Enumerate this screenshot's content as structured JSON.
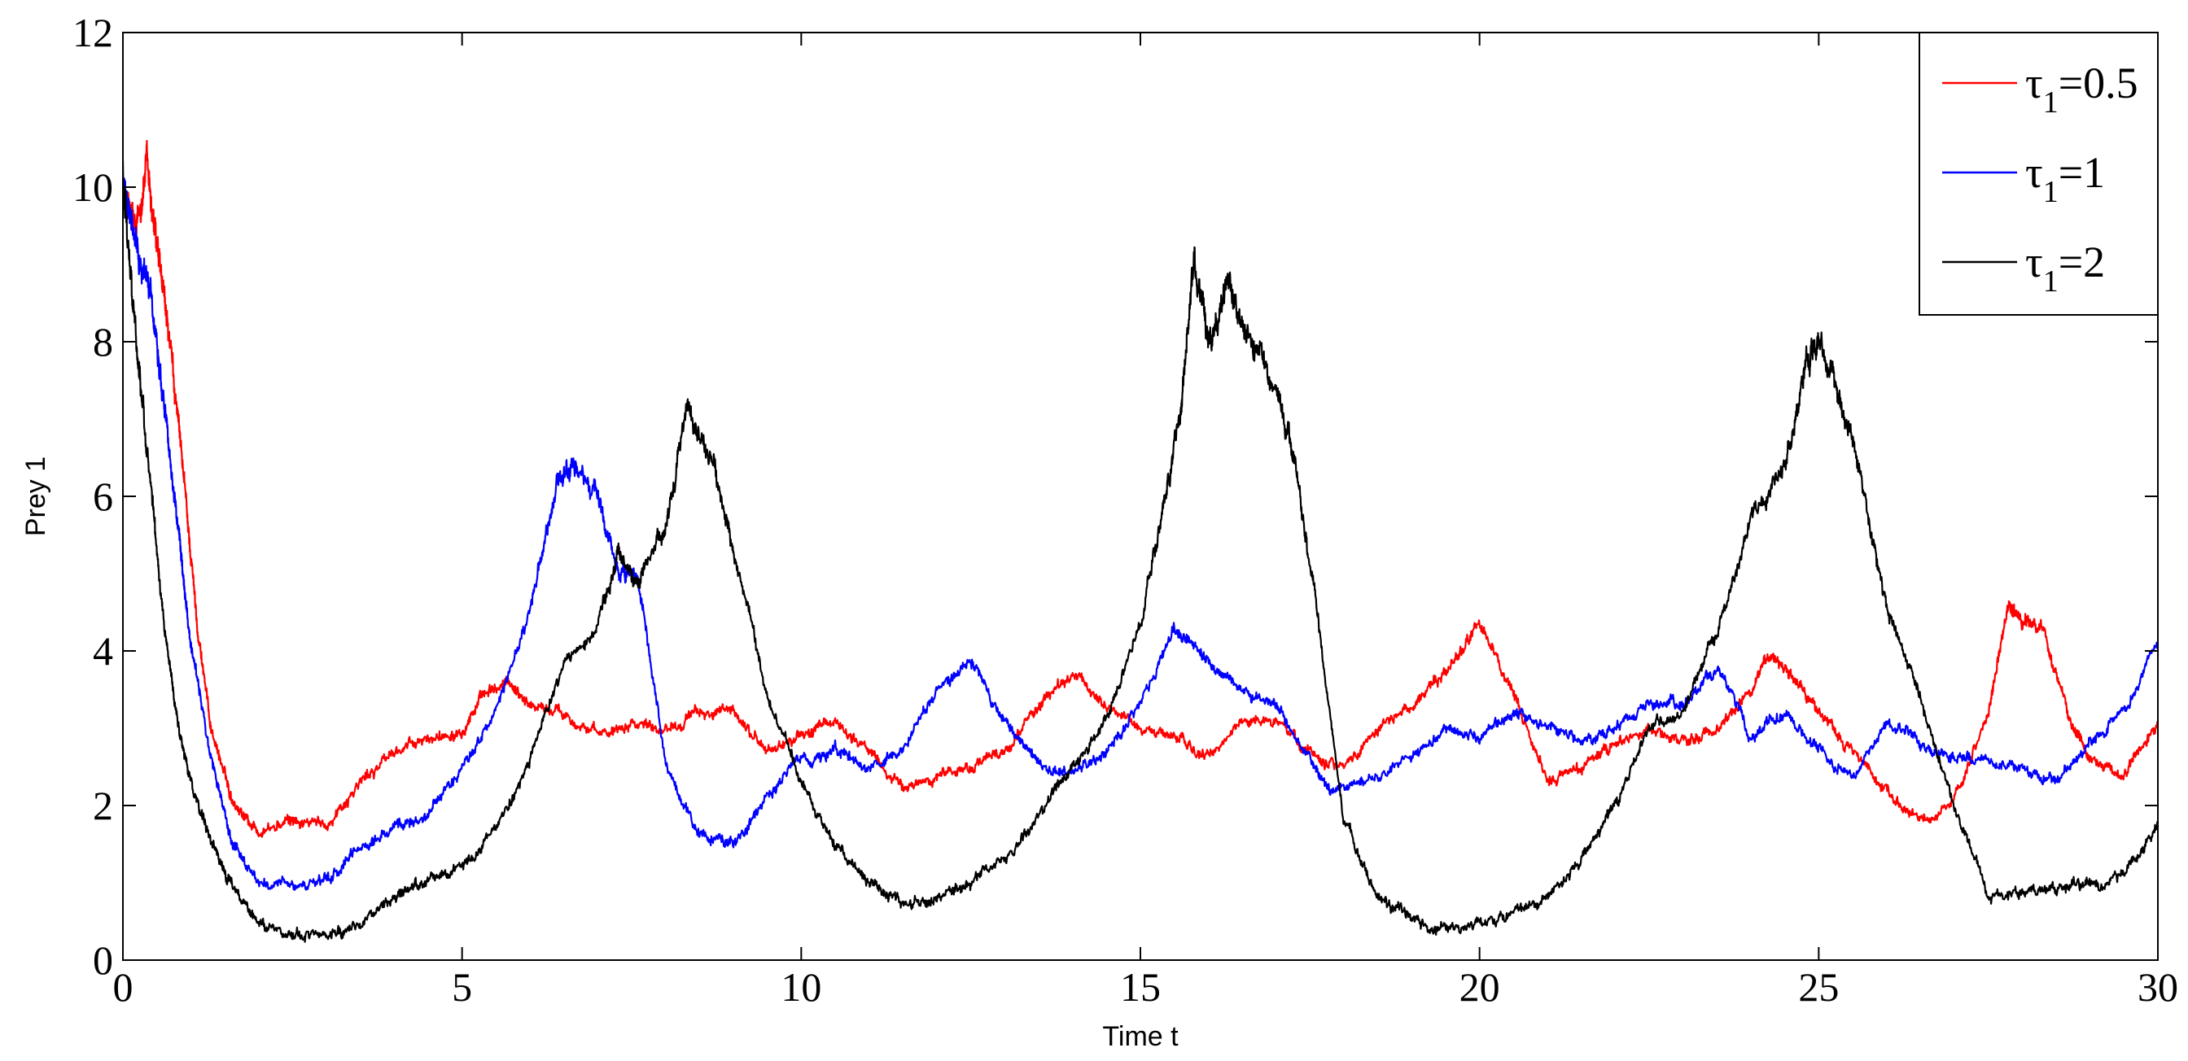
{
  "chart_data": {
    "type": "line",
    "title": "",
    "xlabel": "Time t",
    "ylabel": "Prey 1",
    "xlim": [
      0,
      30
    ],
    "ylim": [
      0,
      12
    ],
    "xticks": [
      0,
      5,
      10,
      15,
      20,
      25,
      30
    ],
    "xtick_labels": [
      "0",
      "5",
      "10",
      "15",
      "20",
      "25",
      "30"
    ],
    "yticks": [
      0,
      2,
      4,
      6,
      8,
      10,
      12
    ],
    "ytick_labels": [
      "0",
      "2",
      "4",
      "6",
      "8",
      "10",
      "12"
    ],
    "grid": false,
    "legend_position": "top-right",
    "series": [
      {
        "name_symbol": "τ",
        "name_sub": "1",
        "name_rest": "=0.5",
        "color": "#ff0000",
        "points": [
          [
            0,
            10.0
          ],
          [
            0.2,
            9.4
          ],
          [
            0.35,
            10.3
          ],
          [
            0.5,
            9.2
          ],
          [
            0.7,
            7.9
          ],
          [
            0.9,
            6.2
          ],
          [
            1.1,
            4.3
          ],
          [
            1.3,
            3.0
          ],
          [
            1.6,
            2.1
          ],
          [
            2.0,
            1.65
          ],
          [
            2.5,
            1.8
          ],
          [
            3.0,
            1.75
          ],
          [
            3.5,
            2.3
          ],
          [
            4.0,
            2.7
          ],
          [
            4.5,
            2.85
          ],
          [
            5.0,
            3.0
          ],
          [
            5.3,
            3.4
          ],
          [
            5.7,
            3.6
          ],
          [
            6.0,
            3.3
          ],
          [
            6.5,
            3.2
          ],
          [
            7.0,
            2.9
          ],
          [
            7.5,
            3.1
          ],
          [
            8.0,
            3.0
          ],
          [
            8.5,
            3.2
          ],
          [
            9.0,
            3.2
          ],
          [
            9.5,
            2.7
          ],
          [
            10.0,
            2.9
          ],
          [
            10.5,
            3.1
          ],
          [
            11.0,
            2.7
          ],
          [
            11.5,
            2.2
          ],
          [
            12.0,
            2.4
          ],
          [
            12.5,
            2.5
          ],
          [
            13.0,
            2.7
          ],
          [
            13.5,
            3.3
          ],
          [
            14.0,
            3.7
          ],
          [
            14.5,
            3.3
          ],
          [
            15.0,
            3.0
          ],
          [
            15.5,
            2.9
          ],
          [
            16.0,
            2.6
          ],
          [
            16.5,
            3.1
          ],
          [
            17.0,
            3.1
          ],
          [
            17.5,
            2.7
          ],
          [
            18.0,
            2.5
          ],
          [
            18.5,
            3.0
          ],
          [
            19.0,
            3.3
          ],
          [
            19.5,
            3.7
          ],
          [
            20.0,
            4.4
          ],
          [
            20.5,
            3.4
          ],
          [
            21.0,
            2.3
          ],
          [
            21.5,
            2.5
          ],
          [
            22.0,
            2.8
          ],
          [
            22.5,
            3.0
          ],
          [
            23.0,
            2.8
          ],
          [
            23.5,
            3.0
          ],
          [
            24.0,
            3.5
          ],
          [
            24.3,
            4.0
          ],
          [
            24.7,
            3.6
          ],
          [
            25.0,
            3.2
          ],
          [
            25.5,
            2.7
          ],
          [
            26.0,
            2.2
          ],
          [
            26.5,
            1.8
          ],
          [
            27.0,
            2.0
          ],
          [
            27.5,
            3.2
          ],
          [
            27.8,
            4.6
          ],
          [
            28.0,
            4.4
          ],
          [
            28.3,
            4.3
          ],
          [
            28.7,
            3.1
          ],
          [
            29.0,
            2.6
          ],
          [
            29.5,
            2.4
          ],
          [
            30.0,
            3.0
          ]
        ]
      },
      {
        "name_symbol": "τ",
        "name_sub": "1",
        "name_rest": "=1",
        "color": "#0000ff",
        "points": [
          [
            0,
            10.0
          ],
          [
            0.2,
            9.2
          ],
          [
            0.4,
            8.7
          ],
          [
            0.6,
            7.3
          ],
          [
            0.8,
            5.7
          ],
          [
            1.0,
            4.1
          ],
          [
            1.3,
            2.6
          ],
          [
            1.6,
            1.55
          ],
          [
            2.0,
            1.0
          ],
          [
            2.5,
            0.95
          ],
          [
            3.0,
            1.0
          ],
          [
            3.5,
            1.45
          ],
          [
            4.0,
            1.7
          ],
          [
            4.5,
            1.9
          ],
          [
            5.0,
            2.5
          ],
          [
            5.5,
            3.2
          ],
          [
            6.0,
            4.5
          ],
          [
            6.4,
            6.1
          ],
          [
            6.6,
            6.4
          ],
          [
            7.0,
            6.0
          ],
          [
            7.3,
            5.0
          ],
          [
            7.6,
            4.9
          ],
          [
            8.0,
            2.5
          ],
          [
            8.5,
            1.6
          ],
          [
            9.0,
            1.5
          ],
          [
            9.5,
            2.1
          ],
          [
            10.0,
            2.6
          ],
          [
            10.5,
            2.7
          ],
          [
            11.0,
            2.5
          ],
          [
            11.5,
            2.7
          ],
          [
            12.0,
            3.5
          ],
          [
            12.5,
            3.9
          ],
          [
            13.0,
            3.1
          ],
          [
            13.5,
            2.5
          ],
          [
            14.0,
            2.4
          ],
          [
            14.5,
            2.7
          ],
          [
            15.0,
            3.3
          ],
          [
            15.5,
            4.3
          ],
          [
            16.0,
            3.9
          ],
          [
            16.5,
            3.5
          ],
          [
            17.0,
            3.3
          ],
          [
            17.5,
            2.6
          ],
          [
            17.8,
            2.2
          ],
          [
            18.3,
            2.3
          ],
          [
            19.0,
            2.6
          ],
          [
            19.5,
            3.0
          ],
          [
            20.0,
            2.9
          ],
          [
            20.5,
            3.2
          ],
          [
            21.0,
            3.0
          ],
          [
            21.5,
            2.8
          ],
          [
            22.0,
            3.0
          ],
          [
            22.5,
            3.3
          ],
          [
            23.0,
            3.3
          ],
          [
            23.5,
            3.8
          ],
          [
            24.0,
            2.9
          ],
          [
            24.5,
            3.2
          ],
          [
            25.0,
            2.7
          ],
          [
            25.5,
            2.4
          ],
          [
            26.0,
            3.1
          ],
          [
            26.5,
            2.8
          ],
          [
            27.0,
            2.6
          ],
          [
            27.5,
            2.6
          ],
          [
            28.0,
            2.5
          ],
          [
            28.5,
            2.3
          ],
          [
            29.0,
            2.8
          ],
          [
            29.5,
            3.2
          ],
          [
            30.0,
            4.1
          ]
        ]
      },
      {
        "name_symbol": "τ",
        "name_sub": "1",
        "name_rest": "=2",
        "color": "#000000",
        "points": [
          [
            0,
            10.2
          ],
          [
            0.2,
            8.0
          ],
          [
            0.4,
            6.2
          ],
          [
            0.6,
            4.4
          ],
          [
            0.8,
            3.1
          ],
          [
            1.0,
            2.3
          ],
          [
            1.3,
            1.5
          ],
          [
            1.6,
            0.95
          ],
          [
            2.0,
            0.5
          ],
          [
            2.5,
            0.33
          ],
          [
            3.0,
            0.3
          ],
          [
            3.5,
            0.5
          ],
          [
            4.0,
            0.8
          ],
          [
            4.5,
            1.0
          ],
          [
            5.0,
            1.2
          ],
          [
            5.5,
            1.7
          ],
          [
            6.0,
            2.6
          ],
          [
            6.5,
            3.8
          ],
          [
            7.0,
            4.4
          ],
          [
            7.3,
            5.2
          ],
          [
            7.6,
            4.9
          ],
          [
            8.0,
            5.6
          ],
          [
            8.3,
            7.1
          ],
          [
            8.7,
            6.4
          ],
          [
            9.0,
            5.3
          ],
          [
            9.5,
            3.4
          ],
          [
            10.0,
            2.3
          ],
          [
            10.5,
            1.5
          ],
          [
            11.0,
            1.0
          ],
          [
            11.5,
            0.75
          ],
          [
            12.0,
            0.8
          ],
          [
            12.5,
            1.0
          ],
          [
            13.0,
            1.3
          ],
          [
            13.5,
            1.9
          ],
          [
            14.0,
            2.5
          ],
          [
            14.5,
            3.1
          ],
          [
            15.0,
            4.3
          ],
          [
            15.3,
            5.7
          ],
          [
            15.6,
            7.2
          ],
          [
            15.8,
            9.1
          ],
          [
            16.0,
            8.0
          ],
          [
            16.3,
            8.7
          ],
          [
            16.6,
            8.0
          ],
          [
            17.0,
            7.4
          ],
          [
            17.3,
            6.3
          ],
          [
            17.6,
            4.5
          ],
          [
            18.0,
            1.8
          ],
          [
            18.5,
            0.8
          ],
          [
            19.0,
            0.5
          ],
          [
            19.5,
            0.4
          ],
          [
            20.0,
            0.45
          ],
          [
            20.5,
            0.6
          ],
          [
            21.0,
            0.8
          ],
          [
            21.5,
            1.3
          ],
          [
            22.0,
            2.0
          ],
          [
            22.5,
            3.0
          ],
          [
            23.0,
            3.2
          ],
          [
            23.5,
            4.3
          ],
          [
            24.0,
            5.7
          ],
          [
            24.5,
            6.4
          ],
          [
            24.8,
            7.6
          ],
          [
            25.0,
            8.0
          ],
          [
            25.3,
            7.3
          ],
          [
            25.6,
            6.3
          ],
          [
            26.0,
            4.6
          ],
          [
            26.5,
            3.4
          ],
          [
            27.0,
            2.0
          ],
          [
            27.5,
            0.85
          ],
          [
            28.0,
            0.85
          ],
          [
            28.5,
            0.95
          ],
          [
            29.0,
            0.95
          ],
          [
            29.5,
            1.1
          ],
          [
            30.0,
            1.75
          ]
        ]
      }
    ]
  }
}
